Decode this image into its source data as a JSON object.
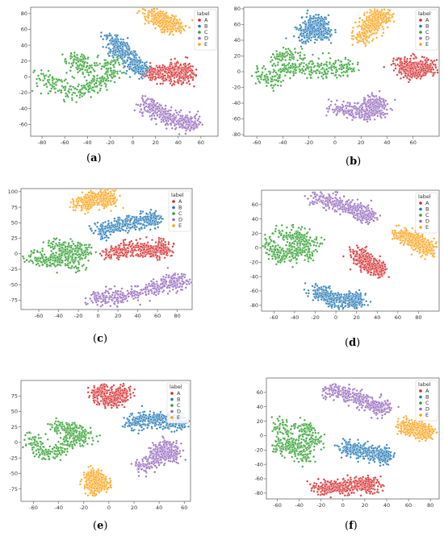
{
  "colors": {
    "A": "#d62728",
    "B": "#1f77b4",
    "C": "#2ca02c",
    "D": "#9467bd",
    "E": "#ff9f0e",
    "axis": "#555555"
  },
  "chart_data": [
    {
      "id": "a",
      "caption": "a",
      "type": "scatter",
      "legend_title": "label",
      "legend_labels": [
        "A",
        "B",
        "C",
        "D",
        "E"
      ],
      "legend_position": "top-right",
      "xlim": [
        -90,
        75
      ],
      "ylim": [
        -75,
        88
      ],
      "xticks": [
        -80,
        -60,
        -40,
        -20,
        0,
        20,
        40,
        60
      ],
      "yticks": [
        -60,
        -40,
        -20,
        0,
        20,
        40,
        60,
        80
      ],
      "clusters": [
        {
          "label": "A",
          "points": [
            [
              12,
              10
            ],
            [
              20,
              3
            ],
            [
              30,
              4
            ],
            [
              40,
              0
            ],
            [
              50,
              4
            ],
            [
              40,
              10
            ]
          ]
        },
        {
          "label": "B",
          "points": [
            [
              -20,
              50
            ],
            [
              -15,
              40
            ],
            [
              -10,
              30
            ],
            [
              -5,
              25
            ],
            [
              5,
              10
            ]
          ]
        },
        {
          "label": "C",
          "points": [
            [
              -85,
              2
            ],
            [
              -70,
              -10
            ],
            [
              -55,
              -20
            ],
            [
              -40,
              -15
            ],
            [
              -30,
              -5
            ],
            [
              -20,
              0
            ],
            [
              -15,
              20
            ],
            [
              -45,
              10
            ],
            [
              -50,
              20
            ]
          ]
        },
        {
          "label": "D",
          "points": [
            [
              10,
              -35
            ],
            [
              20,
              -40
            ],
            [
              30,
              -50
            ],
            [
              40,
              -55
            ],
            [
              50,
              -58
            ]
          ]
        },
        {
          "label": "E",
          "points": [
            [
              15,
              80
            ],
            [
              25,
              72
            ],
            [
              35,
              65
            ]
          ]
        }
      ]
    },
    {
      "id": "b",
      "caption": "b",
      "type": "scatter",
      "legend_title": "label",
      "legend_labels": [
        "A",
        "B",
        "C",
        "D",
        "E"
      ],
      "legend_position": "top-right",
      "xlim": [
        -70,
        80
      ],
      "ylim": [
        -82,
        82
      ],
      "xticks": [
        -60,
        -40,
        -20,
        0,
        20,
        40,
        60
      ],
      "yticks": [
        -80,
        -60,
        -40,
        -20,
        0,
        20,
        40,
        60,
        80
      ],
      "clusters": [
        {
          "label": "A",
          "points": [
            [
              50,
              12
            ],
            [
              55,
              5
            ],
            [
              60,
              0
            ],
            [
              65,
              8
            ],
            [
              70,
              5
            ]
          ]
        },
        {
          "label": "B",
          "points": [
            [
              -25,
              40
            ],
            [
              -20,
              55
            ],
            [
              -15,
              65
            ],
            [
              -10,
              50
            ]
          ]
        },
        {
          "label": "C",
          "points": [
            [
              -60,
              0
            ],
            [
              -45,
              -15
            ],
            [
              -40,
              10
            ],
            [
              -30,
              5
            ],
            [
              -15,
              0
            ],
            [
              0,
              5
            ],
            [
              15,
              5
            ],
            [
              -40,
              20
            ]
          ]
        },
        {
          "label": "D",
          "points": [
            [
              0,
              -45
            ],
            [
              15,
              -50
            ],
            [
              25,
              -55
            ],
            [
              35,
              -48
            ],
            [
              30,
              -40
            ]
          ]
        },
        {
          "label": "E",
          "points": [
            [
              20,
              40
            ],
            [
              25,
              55
            ],
            [
              32,
              65
            ],
            [
              35,
              70
            ]
          ]
        }
      ]
    },
    {
      "id": "c",
      "caption": "c",
      "type": "scatter",
      "legend_title": "label",
      "legend_labels": [
        "A",
        "B",
        "C",
        "D",
        "E"
      ],
      "legend_position": "top-right",
      "xlim": [
        -78,
        95
      ],
      "ylim": [
        -90,
        105
      ],
      "xticks": [
        -60,
        -40,
        -20,
        0,
        20,
        40,
        60,
        80
      ],
      "yticks": [
        -75,
        -50,
        -25,
        0,
        25,
        50,
        75,
        100
      ],
      "clusters": [
        {
          "label": "A",
          "points": [
            [
              10,
              0
            ],
            [
              25,
              5
            ],
            [
              40,
              8
            ],
            [
              55,
              5
            ],
            [
              65,
              8
            ]
          ]
        },
        {
          "label": "B",
          "points": [
            [
              0,
              35
            ],
            [
              10,
              40
            ],
            [
              25,
              48
            ],
            [
              40,
              52
            ],
            [
              55,
              55
            ]
          ]
        },
        {
          "label": "C",
          "points": [
            [
              -70,
              0
            ],
            [
              -55,
              -10
            ],
            [
              -45,
              -15
            ],
            [
              -35,
              -5
            ],
            [
              -30,
              10
            ],
            [
              -20,
              -25
            ],
            [
              -50,
              15
            ],
            [
              -15,
              5
            ]
          ]
        },
        {
          "label": "D",
          "points": [
            [
              -5,
              -70
            ],
            [
              10,
              -72
            ],
            [
              25,
              -68
            ],
            [
              45,
              -60
            ],
            [
              65,
              -50
            ],
            [
              80,
              -45
            ]
          ]
        },
        {
          "label": "E",
          "points": [
            [
              -18,
              78
            ],
            [
              -10,
              85
            ],
            [
              0,
              90
            ],
            [
              10,
              88
            ]
          ]
        }
      ]
    },
    {
      "id": "d",
      "caption": "d",
      "type": "scatter",
      "legend_title": "label",
      "legend_labels": [
        "A",
        "B",
        "C",
        "D",
        "E"
      ],
      "legend_position": "top-right",
      "xlim": [
        -72,
        100
      ],
      "ylim": [
        -88,
        80
      ],
      "xticks": [
        -60,
        -40,
        -20,
        0,
        20,
        40,
        60,
        80
      ],
      "yticks": [
        -80,
        -60,
        -40,
        -20,
        0,
        20,
        40,
        60
      ],
      "clusters": [
        {
          "label": "A",
          "points": [
            [
              20,
              -5
            ],
            [
              25,
              -15
            ],
            [
              30,
              -20
            ],
            [
              35,
              -25
            ],
            [
              40,
              -30
            ]
          ]
        },
        {
          "label": "B",
          "points": [
            [
              -20,
              -60
            ],
            [
              -10,
              -68
            ],
            [
              0,
              -72
            ],
            [
              10,
              -74
            ],
            [
              20,
              -72
            ]
          ]
        },
        {
          "label": "C",
          "points": [
            [
              -70,
              10
            ],
            [
              -60,
              -5
            ],
            [
              -50,
              -15
            ],
            [
              -40,
              0
            ],
            [
              -30,
              -10
            ],
            [
              -20,
              5
            ],
            [
              -55,
              20
            ],
            [
              -35,
              15
            ]
          ]
        },
        {
          "label": "D",
          "points": [
            [
              -20,
              70
            ],
            [
              -5,
              65
            ],
            [
              10,
              58
            ],
            [
              20,
              52
            ],
            [
              30,
              45
            ]
          ]
        },
        {
          "label": "E",
          "points": [
            [
              60,
              20
            ],
            [
              70,
              15
            ],
            [
              80,
              8
            ],
            [
              88,
              0
            ]
          ]
        }
      ]
    },
    {
      "id": "e",
      "caption": "e",
      "type": "scatter",
      "legend_title": "label",
      "legend_labels": [
        "A",
        "B",
        "C",
        "D",
        "E"
      ],
      "legend_position": "top-right",
      "xlim": [
        -70,
        65
      ],
      "ylim": [
        -95,
        100
      ],
      "xticks": [
        -60,
        -40,
        -20,
        0,
        20,
        40,
        60
      ],
      "yticks": [
        -75,
        -50,
        -25,
        0,
        25,
        50,
        75
      ],
      "clusters": [
        {
          "label": "A",
          "points": [
            [
              -10,
              75
            ],
            [
              -5,
              85
            ],
            [
              0,
              65
            ],
            [
              5,
              70
            ],
            [
              10,
              80
            ]
          ]
        },
        {
          "label": "B",
          "points": [
            [
              15,
              30
            ],
            [
              25,
              35
            ],
            [
              35,
              38
            ],
            [
              45,
              35
            ],
            [
              55,
              32
            ]
          ]
        },
        {
          "label": "C",
          "points": [
            [
              -65,
              10
            ],
            [
              -55,
              -10
            ],
            [
              -45,
              -20
            ],
            [
              -35,
              -5
            ],
            [
              -25,
              15
            ],
            [
              -15,
              5
            ],
            [
              -45,
              25
            ],
            [
              -30,
              20
            ]
          ]
        },
        {
          "label": "D",
          "points": [
            [
              25,
              -40
            ],
            [
              35,
              -30
            ],
            [
              40,
              -15
            ],
            [
              45,
              -5
            ],
            [
              50,
              -20
            ]
          ]
        },
        {
          "label": "E",
          "points": [
            [
              -15,
              -75
            ],
            [
              -10,
              -65
            ],
            [
              -5,
              -70
            ],
            [
              -12,
              -55
            ]
          ]
        }
      ]
    },
    {
      "id": "f",
      "caption": "f",
      "type": "scatter",
      "legend_title": "label",
      "legend_labels": [
        "A",
        "B",
        "C",
        "D",
        "E"
      ],
      "legend_position": "top-right",
      "xlim": [
        -70,
        88
      ],
      "ylim": [
        -88,
        80
      ],
      "xticks": [
        -60,
        -40,
        -20,
        0,
        20,
        40,
        60,
        80
      ],
      "yticks": [
        -80,
        -60,
        -40,
        -20,
        0,
        20,
        40,
        60
      ],
      "clusters": [
        {
          "label": "A",
          "points": [
            [
              -25,
              -75
            ],
            [
              -10,
              -70
            ],
            [
              0,
              -72
            ],
            [
              10,
              -70
            ],
            [
              25,
              -68
            ]
          ]
        },
        {
          "label": "B",
          "points": [
            [
              0,
              -15
            ],
            [
              10,
              -20
            ],
            [
              20,
              -22
            ],
            [
              30,
              -25
            ],
            [
              38,
              -28
            ]
          ]
        },
        {
          "label": "C",
          "points": [
            [
              -60,
              20
            ],
            [
              -50,
              0
            ],
            [
              -45,
              -20
            ],
            [
              -35,
              -30
            ],
            [
              -30,
              5
            ],
            [
              -40,
              15
            ],
            [
              -25,
              -10
            ],
            [
              -55,
              -15
            ]
          ]
        },
        {
          "label": "D",
          "points": [
            [
              -15,
              65
            ],
            [
              0,
              60
            ],
            [
              15,
              52
            ],
            [
              25,
              45
            ],
            [
              35,
              38
            ]
          ]
        },
        {
          "label": "E",
          "points": [
            [
              55,
              15
            ],
            [
              62,
              8
            ],
            [
              70,
              12
            ],
            [
              75,
              5
            ]
          ]
        }
      ]
    }
  ]
}
